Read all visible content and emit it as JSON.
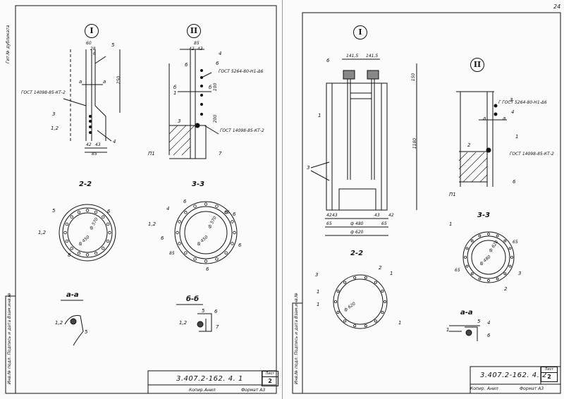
{
  "left": {
    "side_text": "Гит.№ дубликата",
    "binding_strip": "Инв.№ подл.  Подпись и дата  Взам.инв.№",
    "details": {
      "I": {
        "marker": "I",
        "dims": [
          "60",
          "28",
          "5",
          "6",
          "250",
          "1,2",
          "4",
          "42",
          "43",
          "85"
        ],
        "section_marks": [
          "а",
          "а"
        ],
        "gost": "ГОСТ 14098-85-КТ-2",
        "callouts": [
          "5",
          "3",
          "1,2",
          "4"
        ]
      },
      "II": {
        "marker": "II",
        "dims": [
          "85",
          "42",
          "43",
          "100",
          "200"
        ],
        "section_marks": [
          "б",
          "б"
        ],
        "gost_top": "ГОСТ 5264-80-Н1-Δ6",
        "gost_bottom": "ГОСТ 14098-85-КТ-2",
        "callouts": [
          "4",
          "6",
          "6",
          "1",
          "3",
          "П1",
          "7"
        ]
      }
    },
    "sections": {
      "s22": {
        "title": "2-2",
        "callouts": [
          "5",
          "1,2",
          "6",
          "8"
        ],
        "dims": [
          "ф 570",
          "ф 450"
        ]
      },
      "s33": {
        "title": "3-3",
        "callouts": [
          "4",
          "6",
          "1,2",
          "6",
          "6",
          "6",
          "6"
        ],
        "dims": [
          "ф 570",
          "ф 450",
          "65",
          "85"
        ]
      },
      "aa": {
        "title": "а-а",
        "callouts": [
          "1,2",
          "5"
        ]
      },
      "bb": {
        "title": "б-б",
        "callouts": [
          "5",
          "6",
          "1,2",
          "7"
        ]
      }
    },
    "title_block": {
      "code": "3.407.2-162. 4. 1",
      "sheet_caption": "Лист",
      "sheet_number": "2",
      "kopir": "Копир.",
      "copied_by": "Анил",
      "format": "Формат А3"
    }
  },
  "right": {
    "page_number": "24",
    "binding_strip": "Инв.№ подл.  Подпись и дата  Взам.инв.№",
    "details": {
      "I": {
        "marker": "I",
        "dims": [
          "141,5",
          "141,5",
          "150",
          "1180",
          "42",
          "43",
          "43",
          "42",
          "65",
          "65",
          "ф 480",
          "ф 620"
        ],
        "callouts": [
          "6",
          "1",
          "3"
        ]
      },
      "II": {
        "marker": "II",
        "gost_top": "Г ГОСТ 5264-80-Н1-Δ6",
        "gost_bottom": "ГОСТ 14098-85-КТ-2",
        "section_marks": [
          "а",
          "а"
        ],
        "callouts": [
          "3",
          "4",
          "1",
          "2",
          "П1",
          "6"
        ]
      }
    },
    "sections": {
      "s22": {
        "title": "2-2",
        "callouts": [
          "3",
          "2",
          "1",
          "1",
          "1",
          "1"
        ],
        "dims": [
          "ф 620"
        ]
      },
      "s33": {
        "title": "3-3",
        "callouts": [
          "1",
          "3",
          "2",
          "65",
          "65"
        ],
        "dims": [
          "ф 620",
          "ф 480"
        ]
      },
      "aa": {
        "title": "а-а",
        "callouts": [
          "5",
          "4",
          "1",
          "6"
        ]
      }
    },
    "title_block": {
      "code": "3.407.2-162. 4. 2",
      "sheet_caption": "Лист",
      "sheet_number": "2",
      "kopir": "Копир.",
      "copied_by": "Анил",
      "format": "Формат А3"
    }
  }
}
